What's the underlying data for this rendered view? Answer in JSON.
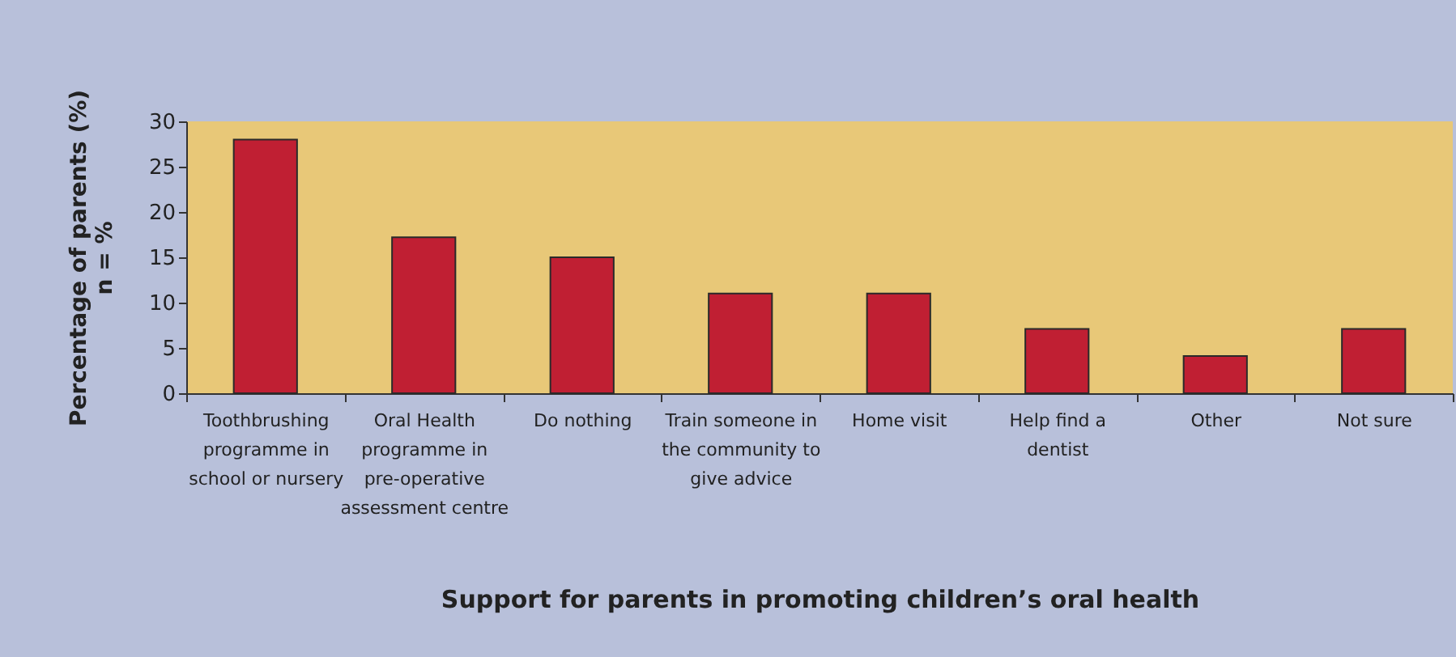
{
  "chart_data": {
    "type": "bar",
    "xlabel": "Support for parents in promoting children’s oral health",
    "ylabel": "Percentage of parents (%)\nn = %",
    "categories": [
      "Toothbrushing programme in school or nursery",
      "Oral Health programme in pre-operative assessment centre",
      "Do nothing",
      "Train someone in the community to give advice",
      "Home visit",
      "Help find a dentist",
      "Other",
      "Not sure"
    ],
    "values": [
      28,
      17.2,
      15,
      11,
      11,
      7.1,
      4.1,
      7.1
    ],
    "color": "#c01f33",
    "ylim": [
      0,
      30
    ],
    "yticks": [
      0,
      5,
      10,
      15,
      20,
      25,
      30
    ],
    "grid": false
  }
}
